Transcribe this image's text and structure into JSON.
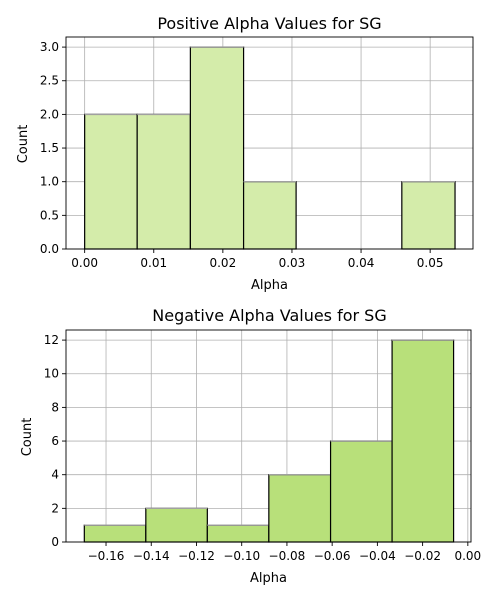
{
  "chart_data": [
    {
      "type": "bar",
      "title": "Positive Alpha Values for SG",
      "xlabel": "Alpha",
      "ylabel": "Count",
      "bar_color": "#d4ecaa",
      "edge_color": "#000000",
      "grid": true,
      "xlim": [
        -0.0027,
        0.0562
      ],
      "ylim": [
        0,
        3.15
      ],
      "xticks": [
        0.0,
        0.01,
        0.02,
        0.03,
        0.04,
        0.05
      ],
      "xtick_labels": [
        "0.00",
        "0.01",
        "0.02",
        "0.03",
        "0.04",
        "0.05"
      ],
      "yticks": [
        0,
        0.5,
        1,
        1.5,
        2,
        2.5,
        3
      ],
      "ytick_labels": [
        "0.0",
        "0.5",
        "1.0",
        "1.5",
        "2.0",
        "2.5",
        "3.0"
      ],
      "bins": [
        {
          "x0": 0.0,
          "x1": 0.0076,
          "count": 2
        },
        {
          "x0": 0.0076,
          "x1": 0.0153,
          "count": 2
        },
        {
          "x0": 0.0153,
          "x1": 0.023,
          "count": 3
        },
        {
          "x0": 0.023,
          "x1": 0.0306,
          "count": 1
        },
        {
          "x0": 0.0306,
          "x1": 0.0383,
          "count": 0
        },
        {
          "x0": 0.0383,
          "x1": 0.0459,
          "count": 0
        },
        {
          "x0": 0.0459,
          "x1": 0.0536,
          "count": 1
        }
      ]
    },
    {
      "type": "bar",
      "title": "Negative Alpha Values for SG",
      "xlabel": "Alpha",
      "ylabel": "Count",
      "bar_color": "#b8e07a",
      "edge_color": "#000000",
      "grid": true,
      "xlim": [
        -0.1777,
        0.0014
      ],
      "ylim": [
        0,
        12.6
      ],
      "xticks": [
        -0.16,
        -0.14,
        -0.12,
        -0.1,
        -0.08,
        -0.06,
        -0.04,
        -0.02,
        0.0
      ],
      "xtick_labels": [
        "−0.16",
        "−0.14",
        "−0.12",
        "−0.10",
        "−0.08",
        "−0.06",
        "−0.04",
        "−0.02",
        "0.00"
      ],
      "yticks": [
        0,
        2,
        4,
        6,
        8,
        10,
        12
      ],
      "ytick_labels": [
        "0",
        "2",
        "4",
        "6",
        "8",
        "10",
        "12"
      ],
      "bins": [
        {
          "x0": -0.1696,
          "x1": -0.1424,
          "count": 1
        },
        {
          "x0": -0.1424,
          "x1": -0.1152,
          "count": 2
        },
        {
          "x0": -0.1152,
          "x1": -0.088,
          "count": 1
        },
        {
          "x0": -0.088,
          "x1": -0.0607,
          "count": 4
        },
        {
          "x0": -0.0607,
          "x1": -0.0335,
          "count": 6
        },
        {
          "x0": -0.0335,
          "x1": -0.0063,
          "count": 12
        }
      ]
    }
  ]
}
